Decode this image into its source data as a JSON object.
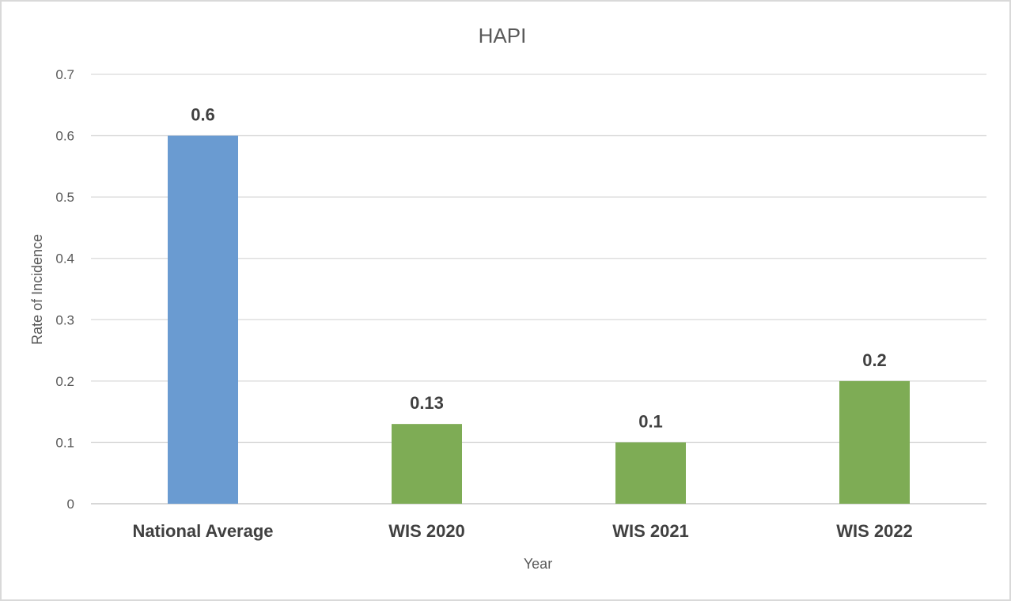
{
  "chart_data": {
    "type": "bar",
    "title": "HAPI",
    "xlabel": "Year",
    "ylabel": "Rate of Incidence",
    "categories": [
      "National Average",
      "WIS 2020",
      "WIS 2021",
      "WIS 2022"
    ],
    "values": [
      0.6,
      0.13,
      0.1,
      0.2
    ],
    "value_labels": [
      "0.6",
      "0.13",
      "0.1",
      "0.2"
    ],
    "colors": [
      "#6a9bd1",
      "#7eac55",
      "#7eac55",
      "#7eac55"
    ],
    "ylim": [
      0,
      0.7
    ],
    "yticks": [
      0,
      0.1,
      0.2,
      0.3,
      0.4,
      0.5,
      0.6,
      0.7
    ],
    "ytick_labels": [
      "0",
      "0.1",
      "0.2",
      "0.3",
      "0.4",
      "0.5",
      "0.6",
      "0.7"
    ],
    "grid": true,
    "legend": "none"
  }
}
